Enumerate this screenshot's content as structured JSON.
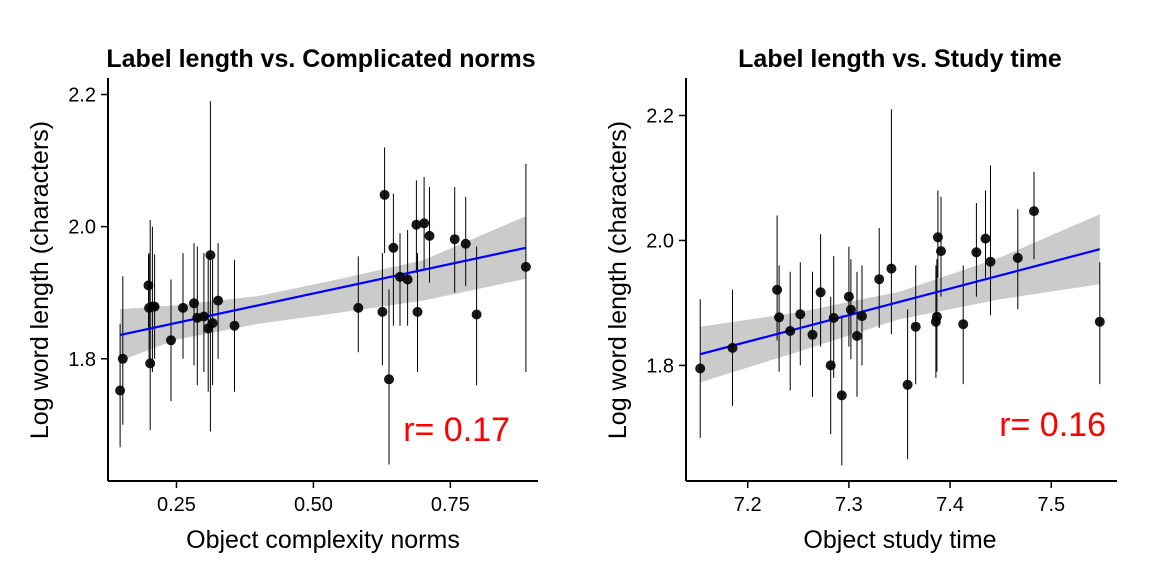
{
  "chart_data": [
    {
      "type": "scatter",
      "title": "Label length vs. Complicated norms",
      "xlabel": "Object complexity norms",
      "ylabel": "Log word length (characters)",
      "annotation": "r= 0.17",
      "xlim": [
        0.125,
        0.91
      ],
      "ylim": [
        1.615,
        2.225
      ],
      "x_ticks": [
        0.25,
        0.5,
        0.75
      ],
      "x_tick_labels": [
        "0.25",
        "0.50",
        "0.75"
      ],
      "y_ticks": [
        1.8,
        2.0,
        2.2
      ],
      "y_tick_labels": [
        "1.8",
        "2.0",
        "2.2"
      ],
      "fit_line": {
        "x": [
          0.147,
          0.888
        ],
        "y": [
          1.836,
          1.968
        ]
      },
      "confidence_band": {
        "x": [
          0.147,
          0.25,
          0.4,
          0.55,
          0.7,
          0.888
        ],
        "lower": [
          1.797,
          1.829,
          1.853,
          1.87,
          1.888,
          1.921
        ],
        "upper": [
          1.875,
          1.881,
          1.895,
          1.921,
          1.949,
          2.016
        ]
      },
      "points": [
        {
          "x": 0.147,
          "y": 1.752,
          "lo": 1.666,
          "hi": 1.853
        },
        {
          "x": 0.152,
          "y": 1.8,
          "lo": 1.7,
          "hi": 1.925
        },
        {
          "x": 0.199,
          "y": 1.911,
          "lo": 1.845,
          "hi": 1.958
        },
        {
          "x": 0.2,
          "y": 1.877,
          "lo": 1.8,
          "hi": 1.96
        },
        {
          "x": 0.202,
          "y": 1.793,
          "lo": 1.692,
          "hi": 2.01
        },
        {
          "x": 0.206,
          "y": 1.879,
          "lo": 1.78,
          "hi": 2.0
        },
        {
          "x": 0.21,
          "y": 1.879,
          "lo": 1.8,
          "hi": 1.958
        },
        {
          "x": 0.24,
          "y": 1.828,
          "lo": 1.736,
          "hi": 1.92
        },
        {
          "x": 0.262,
          "y": 1.877,
          "lo": 1.8,
          "hi": 1.96
        },
        {
          "x": 0.282,
          "y": 1.884,
          "lo": 1.79,
          "hi": 1.975
        },
        {
          "x": 0.288,
          "y": 1.862,
          "lo": 1.76,
          "hi": 1.97
        },
        {
          "x": 0.3,
          "y": 1.864,
          "lo": 1.78,
          "hi": 1.96
        },
        {
          "x": 0.308,
          "y": 1.846,
          "lo": 1.75,
          "hi": 1.958
        },
        {
          "x": 0.312,
          "y": 1.957,
          "lo": 1.69,
          "hi": 2.19
        },
        {
          "x": 0.316,
          "y": 1.854,
          "lo": 1.76,
          "hi": 1.95
        },
        {
          "x": 0.326,
          "y": 1.888,
          "lo": 1.8,
          "hi": 1.975
        },
        {
          "x": 0.356,
          "y": 1.85,
          "lo": 1.75,
          "hi": 1.95
        },
        {
          "x": 0.582,
          "y": 1.877,
          "lo": 1.81,
          "hi": 1.955
        },
        {
          "x": 0.626,
          "y": 1.871,
          "lo": 1.79,
          "hi": 1.96
        },
        {
          "x": 0.63,
          "y": 2.048,
          "lo": 1.96,
          "hi": 2.12
        },
        {
          "x": 0.638,
          "y": 1.769,
          "lo": 1.64,
          "hi": 1.905
        },
        {
          "x": 0.646,
          "y": 1.968,
          "lo": 1.85,
          "hi": 2.05
        },
        {
          "x": 0.658,
          "y": 1.924,
          "lo": 1.85,
          "hi": 1.99
        },
        {
          "x": 0.672,
          "y": 1.92,
          "lo": 1.85,
          "hi": 1.995
        },
        {
          "x": 0.688,
          "y": 2.003,
          "lo": 1.93,
          "hi": 2.07
        },
        {
          "x": 0.69,
          "y": 1.871,
          "lo": 1.78,
          "hi": 1.96
        },
        {
          "x": 0.702,
          "y": 2.005,
          "lo": 1.935,
          "hi": 2.075
        },
        {
          "x": 0.712,
          "y": 1.986,
          "lo": 1.915,
          "hi": 2.06
        },
        {
          "x": 0.758,
          "y": 1.981,
          "lo": 1.9,
          "hi": 2.06
        },
        {
          "x": 0.778,
          "y": 1.974,
          "lo": 1.91,
          "hi": 2.045
        },
        {
          "x": 0.798,
          "y": 1.867,
          "lo": 1.76,
          "hi": 1.97
        },
        {
          "x": 0.888,
          "y": 1.939,
          "lo": 1.78,
          "hi": 2.095
        }
      ]
    },
    {
      "type": "scatter",
      "title": "Label length vs. Study time",
      "xlabel": "Object study time",
      "ylabel": "Log word length (characters)",
      "annotation": "r= 0.16",
      "xlim": [
        7.139,
        7.565
      ],
      "ylim": [
        1.615,
        2.26
      ],
      "x_ticks": [
        7.2,
        7.3,
        7.4,
        7.5
      ],
      "x_tick_labels": [
        "7.2",
        "7.3",
        "7.4",
        "7.5"
      ],
      "y_ticks": [
        1.8,
        2.0,
        2.2
      ],
      "y_tick_labels": [
        "1.8",
        "2.0",
        "2.2"
      ],
      "fit_line": {
        "x": [
          7.153,
          7.548
        ],
        "y": [
          1.818,
          1.986
        ]
      },
      "confidence_band": {
        "x": [
          7.153,
          7.25,
          7.35,
          7.45,
          7.548
        ],
        "lower": [
          1.773,
          1.822,
          1.874,
          1.906,
          1.93
        ],
        "upper": [
          1.862,
          1.885,
          1.918,
          1.973,
          2.042
        ]
      },
      "points": [
        {
          "x": 7.153,
          "y": 1.795,
          "lo": 1.684,
          "hi": 1.906
        },
        {
          "x": 7.185,
          "y": 1.828,
          "lo": 1.735,
          "hi": 1.921
        },
        {
          "x": 7.229,
          "y": 1.921,
          "lo": 1.84,
          "hi": 2.04
        },
        {
          "x": 7.231,
          "y": 1.877,
          "lo": 1.79,
          "hi": 1.96
        },
        {
          "x": 7.242,
          "y": 1.855,
          "lo": 1.76,
          "hi": 1.95
        },
        {
          "x": 7.252,
          "y": 1.882,
          "lo": 1.8,
          "hi": 1.965
        },
        {
          "x": 7.264,
          "y": 1.849,
          "lo": 1.75,
          "hi": 1.95
        },
        {
          "x": 7.272,
          "y": 1.917,
          "lo": 1.83,
          "hi": 2.01
        },
        {
          "x": 7.282,
          "y": 1.8,
          "lo": 1.69,
          "hi": 1.91
        },
        {
          "x": 7.285,
          "y": 1.876,
          "lo": 1.78,
          "hi": 1.975
        },
        {
          "x": 7.293,
          "y": 1.752,
          "lo": 1.64,
          "hi": 1.88
        },
        {
          "x": 7.3,
          "y": 1.91,
          "lo": 1.83,
          "hi": 1.99
        },
        {
          "x": 7.302,
          "y": 1.889,
          "lo": 1.81,
          "hi": 1.97
        },
        {
          "x": 7.308,
          "y": 1.847,
          "lo": 1.75,
          "hi": 1.95
        },
        {
          "x": 7.313,
          "y": 1.879,
          "lo": 1.8,
          "hi": 1.96
        },
        {
          "x": 7.33,
          "y": 1.938,
          "lo": 1.86,
          "hi": 2.02
        },
        {
          "x": 7.342,
          "y": 1.955,
          "lo": 1.85,
          "hi": 2.21
        },
        {
          "x": 7.358,
          "y": 1.769,
          "lo": 1.65,
          "hi": 1.89
        },
        {
          "x": 7.366,
          "y": 1.862,
          "lo": 1.77,
          "hi": 1.96
        },
        {
          "x": 7.386,
          "y": 1.87,
          "lo": 1.78,
          "hi": 1.96
        },
        {
          "x": 7.387,
          "y": 1.878,
          "lo": 1.79,
          "hi": 1.97
        },
        {
          "x": 7.388,
          "y": 2.005,
          "lo": 1.94,
          "hi": 2.08
        },
        {
          "x": 7.391,
          "y": 1.983,
          "lo": 1.91,
          "hi": 2.07
        },
        {
          "x": 7.413,
          "y": 1.866,
          "lo": 1.77,
          "hi": 1.96
        },
        {
          "x": 7.426,
          "y": 1.981,
          "lo": 1.91,
          "hi": 2.06
        },
        {
          "x": 7.435,
          "y": 2.003,
          "lo": 1.94,
          "hi": 2.08
        },
        {
          "x": 7.44,
          "y": 1.966,
          "lo": 1.88,
          "hi": 2.12
        },
        {
          "x": 7.467,
          "y": 1.972,
          "lo": 1.89,
          "hi": 2.05
        },
        {
          "x": 7.483,
          "y": 2.047,
          "lo": 1.97,
          "hi": 2.11
        },
        {
          "x": 7.548,
          "y": 1.87,
          "lo": 1.77,
          "hi": 1.965
        }
      ]
    }
  ],
  "colors": {
    "point": "#000000",
    "errorbar": "#000000",
    "fit_line": "#0000ff",
    "confidence_band": "#c8c8c8",
    "annotation": "#ff0000"
  }
}
